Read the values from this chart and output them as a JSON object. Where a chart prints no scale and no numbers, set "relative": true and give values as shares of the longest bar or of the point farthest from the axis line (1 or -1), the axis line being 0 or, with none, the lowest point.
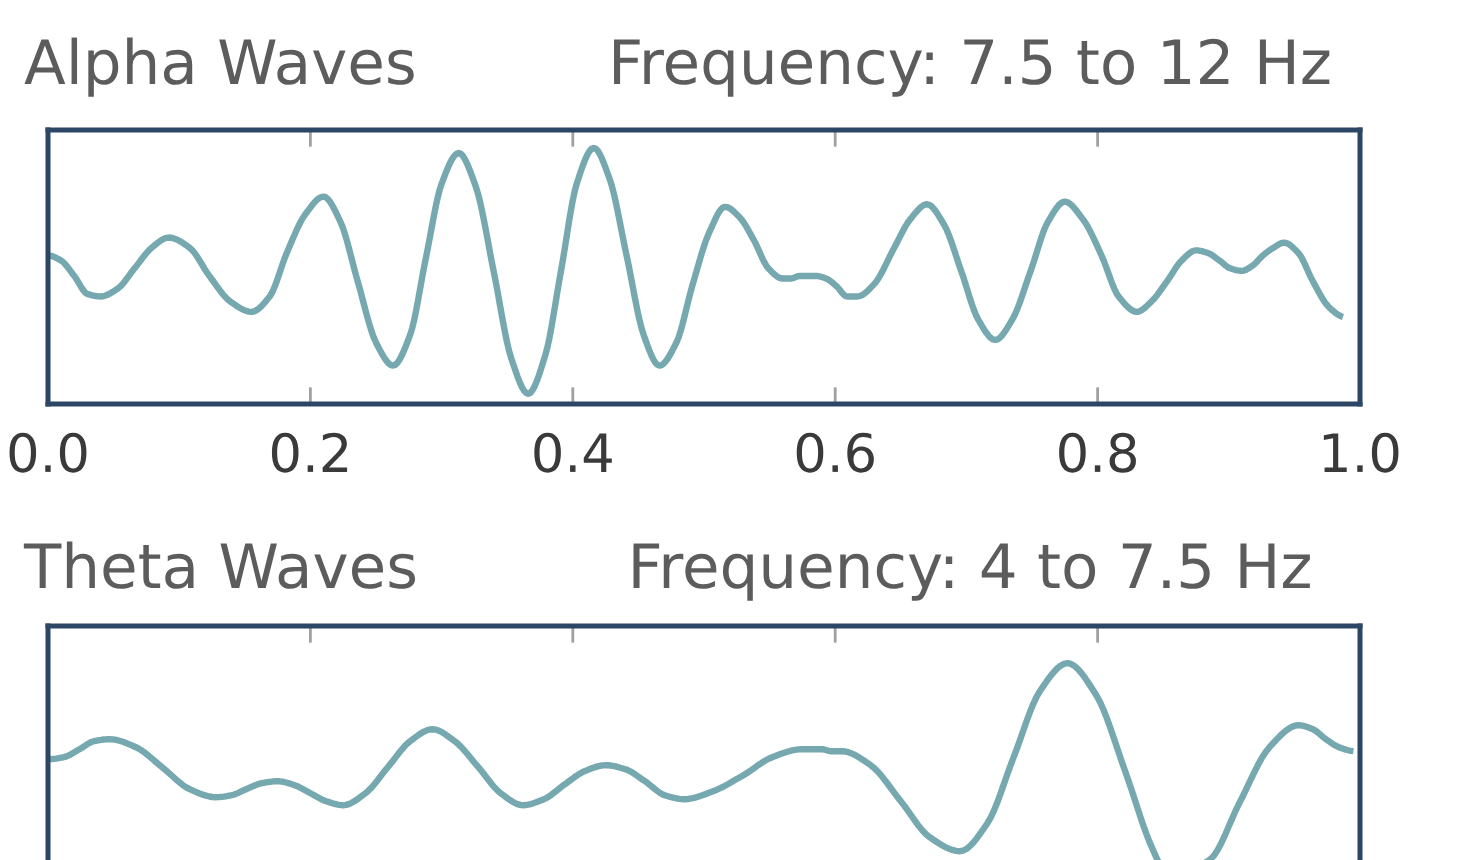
{
  "chart_data": [
    {
      "type": "line",
      "title": "Alpha Waves",
      "subtitle": "Frequency: 7.5 to 12 Hz",
      "relative": true,
      "x": [
        0,
        0.01,
        0.02,
        0.03,
        0.04,
        0.053,
        0.066,
        0.079,
        0.092,
        0.108,
        0.123,
        0.139,
        0.155,
        0.169,
        0.182,
        0.196,
        0.21,
        0.223,
        0.236,
        0.25,
        0.263,
        0.276,
        0.288,
        0.3,
        0.313,
        0.326,
        0.34,
        0.353,
        0.366,
        0.379,
        0.391,
        0.403,
        0.416,
        0.428,
        0.441,
        0.454,
        0.466,
        0.479,
        0.491,
        0.504,
        0.516,
        0.527,
        0.538,
        0.549,
        0.56,
        0.566,
        0.573,
        0.579,
        0.585,
        0.593,
        0.601,
        0.609,
        0.617,
        0.63,
        0.644,
        0.657,
        0.67,
        0.683,
        0.696,
        0.709,
        0.722,
        0.735,
        0.749,
        0.762,
        0.775,
        0.789,
        0.803,
        0.816,
        0.83,
        0.841,
        0.853,
        0.864,
        0.875,
        0.884,
        0.893,
        0.901,
        0.91,
        0.918,
        0.926,
        0.934,
        0.942,
        0.953,
        0.964,
        0.976,
        0.987
      ],
      "series": [
        {
          "color": "#76a8b0",
          "values": [
            0.58,
            0.56,
            0.5,
            0.43,
            0.42,
            0.45,
            0.53,
            0.61,
            0.65,
            0.61,
            0.5,
            0.4,
            0.36,
            0.42,
            0.59,
            0.74,
            0.81,
            0.71,
            0.48,
            0.24,
            0.15,
            0.27,
            0.57,
            0.86,
            0.98,
            0.85,
            0.51,
            0.18,
            0.04,
            0.19,
            0.52,
            0.86,
            1,
            0.88,
            0.58,
            0.27,
            0.15,
            0.24,
            0.46,
            0.67,
            0.77,
            0.73,
            0.64,
            0.53,
            0.49,
            0.49,
            0.5,
            0.5,
            0.5,
            0.49,
            0.46,
            0.42,
            0.42,
            0.47,
            0.6,
            0.72,
            0.78,
            0.7,
            0.52,
            0.33,
            0.25,
            0.33,
            0.52,
            0.71,
            0.79,
            0.72,
            0.58,
            0.42,
            0.36,
            0.4,
            0.48,
            0.56,
            0.6,
            0.59,
            0.56,
            0.53,
            0.52,
            0.54,
            0.58,
            0.61,
            0.63,
            0.59,
            0.48,
            0.38,
            0.34
          ]
        }
      ],
      "xlim": [
        0,
        1
      ],
      "xticks": [
        {
          "value": 0,
          "label": "0.0"
        },
        0.2,
        0.4,
        0.6,
        0.8,
        {
          "value": 1,
          "label": "1.0"
        }
      ],
      "tick_labels": "x"
    },
    {
      "type": "line",
      "title": "Theta Waves",
      "subtitle": "Frequency: 4 to 7.5 Hz",
      "relative": true,
      "x": [
        0,
        0.012,
        0.024,
        0.035,
        0.047,
        0.067,
        0.087,
        0.108,
        0.128,
        0.14,
        0.151,
        0.163,
        0.175,
        0.188,
        0.2,
        0.212,
        0.225,
        0.242,
        0.259,
        0.276,
        0.293,
        0.31,
        0.328,
        0.345,
        0.362,
        0.378,
        0.393,
        0.409,
        0.425,
        0.44,
        0.455,
        0.47,
        0.485,
        0.507,
        0.53,
        0.552,
        0.575,
        0.583,
        0.59,
        0.597,
        0.605,
        0.627,
        0.65,
        0.672,
        0.695,
        0.716,
        0.736,
        0.756,
        0.777,
        0.799,
        0.821,
        0.842,
        0.848,
        0.88,
        0.886,
        0.908,
        0.931,
        0.953,
        0.964,
        0.974,
        0.984,
        0.995
      ],
      "series": [
        {
          "color": "#76a8b0",
          "values": [
            0.52,
            0.53,
            0.57,
            0.61,
            0.62,
            0.58,
            0.48,
            0.37,
            0.33,
            0.34,
            0.37,
            0.4,
            0.41,
            0.39,
            0.35,
            0.31,
            0.29,
            0.35,
            0.48,
            0.61,
            0.67,
            0.61,
            0.48,
            0.35,
            0.29,
            0.32,
            0.39,
            0.46,
            0.49,
            0.47,
            0.41,
            0.34,
            0.32,
            0.36,
            0.44,
            0.53,
            0.57,
            0.57,
            0.57,
            0.56,
            0.56,
            0.49,
            0.31,
            0.13,
            0.06,
            0.2,
            0.53,
            0.86,
            1,
            0.84,
            0.46,
            0.07,
            0,
            0,
            0.02,
            0.3,
            0.58,
            0.69,
            0.67,
            0.62,
            0.58,
            0.56
          ]
        }
      ],
      "xlim": [
        0,
        1
      ],
      "xticks": [
        0.2,
        0.4,
        0.6,
        0.8
      ],
      "tick_labels": false
    }
  ]
}
